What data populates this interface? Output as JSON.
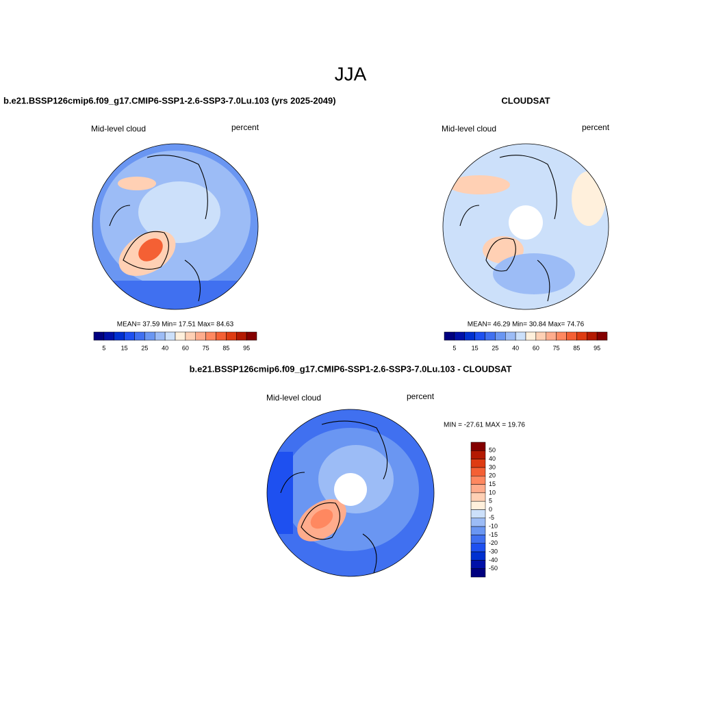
{
  "title": "JJA",
  "panels": [
    {
      "title": "b.e21.BSSP126cmip6.f09_g17.CMIP6-SSP1-2.6-SSP3-7.0Lu.103 (yrs 2025-2049)",
      "left_label": "Mid-level cloud",
      "right_label": "percent",
      "stats": "MEAN=  37.59  Min=  17.51  Max=  84.63",
      "colorbar": {
        "labels": [
          5,
          15,
          25,
          40,
          60,
          75,
          85,
          95
        ],
        "colors": [
          "#00007f",
          "#0010a8",
          "#0030d0",
          "#1e50f0",
          "#4070f0",
          "#6a96f2",
          "#9cbcf6",
          "#cce0fa",
          "#fff0dc",
          "#ffd0b4",
          "#ffac8c",
          "#ff8860",
          "#f46034",
          "#de3c12",
          "#b41a02",
          "#840000"
        ]
      }
    },
    {
      "title": "CLOUDSAT",
      "left_label": "Mid-level cloud",
      "right_label": "percent",
      "stats": "MEAN=  46.29  Min=  30.84  Max=  74.76",
      "colorbar": {
        "labels": [
          5,
          15,
          25,
          40,
          60,
          75,
          85,
          95
        ],
        "colors": [
          "#00007f",
          "#0010a8",
          "#0030d0",
          "#1e50f0",
          "#4070f0",
          "#6a96f2",
          "#9cbcf6",
          "#cce0fa",
          "#fff0dc",
          "#ffd0b4",
          "#ffac8c",
          "#ff8860",
          "#f46034",
          "#de3c12",
          "#b41a02",
          "#840000"
        ]
      }
    }
  ],
  "diff_panel": {
    "title": "b.e21.BSSP126cmip6.f09_g17.CMIP6-SSP1-2.6-SSP3-7.0Lu.103 - CLOUDSAT",
    "left_label": "Mid-level cloud",
    "right_label": "percent",
    "stats": "MIN = -27.61 MAX =  19.76",
    "colorbar": {
      "labels": [
        50,
        40,
        30,
        20,
        15,
        10,
        5,
        0,
        -5,
        -10,
        -15,
        -20,
        -30,
        -40,
        -50
      ],
      "colors": [
        "#840000",
        "#b41a02",
        "#de3c12",
        "#f46034",
        "#ff8860",
        "#ffac8c",
        "#ffd0b4",
        "#fff0dc",
        "#cce0fa",
        "#9cbcf6",
        "#6a96f2",
        "#4070f0",
        "#1e50f0",
        "#0030d0",
        "#0010a8",
        "#00007f"
      ]
    }
  }
}
